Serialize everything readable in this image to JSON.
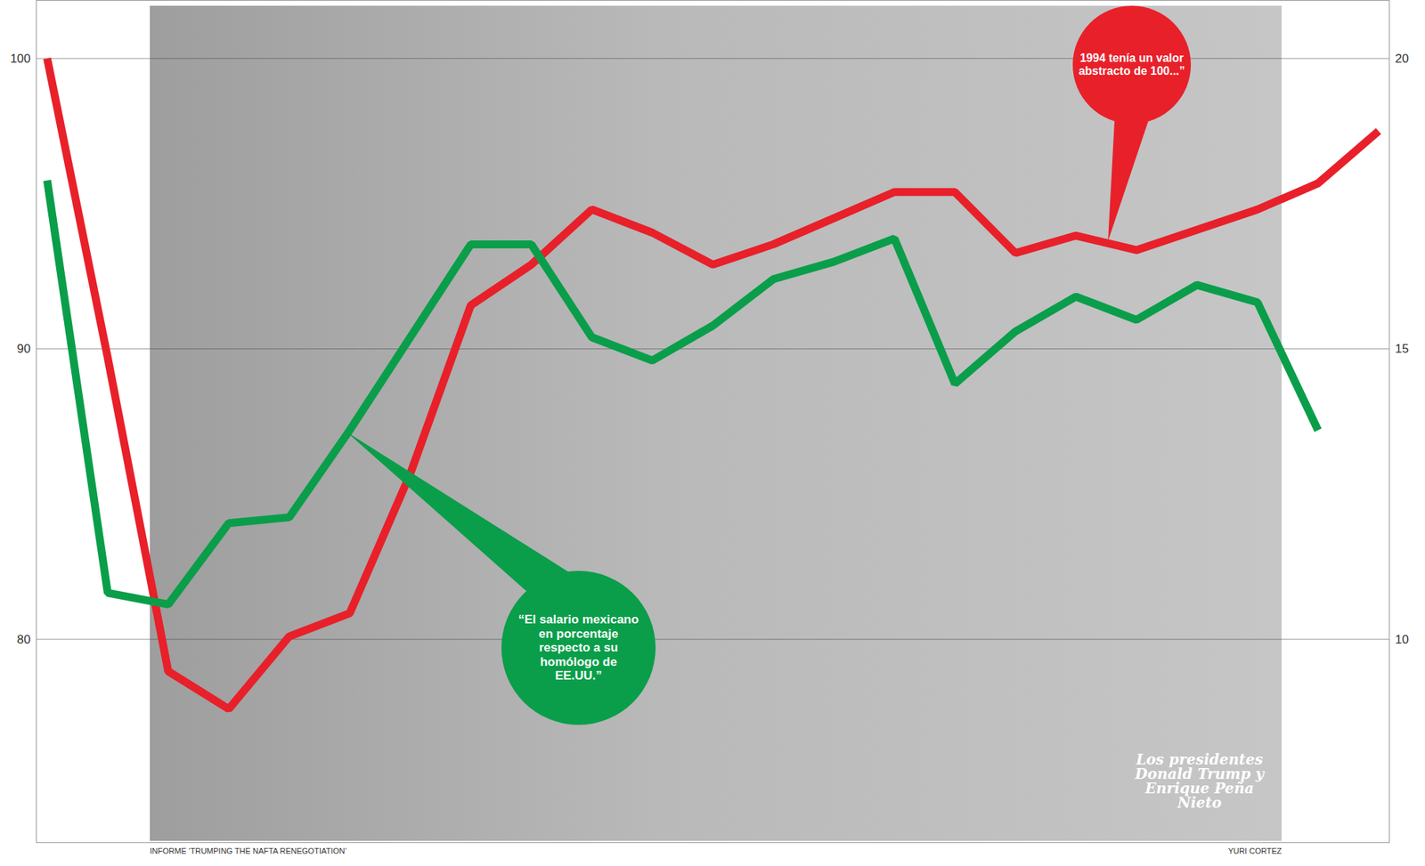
{
  "chart_data": {
    "type": "line",
    "categories": [
      null,
      null,
      null,
      null,
      null,
      null,
      null,
      null,
      null,
      null,
      null,
      null,
      null,
      null,
      null,
      null,
      null,
      null,
      null,
      null,
      null,
      null,
      null
    ],
    "series": [
      {
        "color": "#e8202a",
        "values": [
          100,
          89.7,
          78.9,
          77.6,
          80.1,
          80.9,
          85.7,
          91.5,
          92.9,
          94.8,
          94.0,
          92.9,
          93.6,
          94.5,
          95.4,
          95.4,
          93.3,
          93.9,
          93.4,
          94.1,
          94.8,
          95.7,
          97.5
        ]
      },
      {
        "color": "#0a9e4a",
        "axis": "y2",
        "values": [
          17.9,
          10.8,
          10.6,
          12.0,
          12.1,
          13.6,
          15.2,
          16.8,
          16.8,
          15.2,
          14.8,
          15.4,
          16.2,
          16.5,
          16.9,
          14.4,
          15.3,
          15.9,
          15.5,
          16.1,
          15.8,
          13.6,
          null
        ]
      }
    ],
    "ylim": [
      73,
      102
    ],
    "yticks": [
      80,
      90,
      100
    ],
    "y2lim": [
      6.5,
      21
    ],
    "y2ticks": [
      10,
      15,
      20
    ],
    "grid": true,
    "tick_labels": "y",
    "annotations": [
      {
        "text": "1994 tenía un valor abstracto de 100...”",
        "color": "#e8202a"
      },
      {
        "text": "“El salario mexicano en porcentaje respecto a su homólogo de EE.UU.”",
        "color": "#0a9e4a"
      }
    ],
    "caption": "Los presidentes Donald Trump y Enrique Peña Nieto",
    "source": "INFORME ‘TRUMPING THE NAFTA RENEGOTIATION’",
    "credit": "YURI CORTEZ"
  }
}
